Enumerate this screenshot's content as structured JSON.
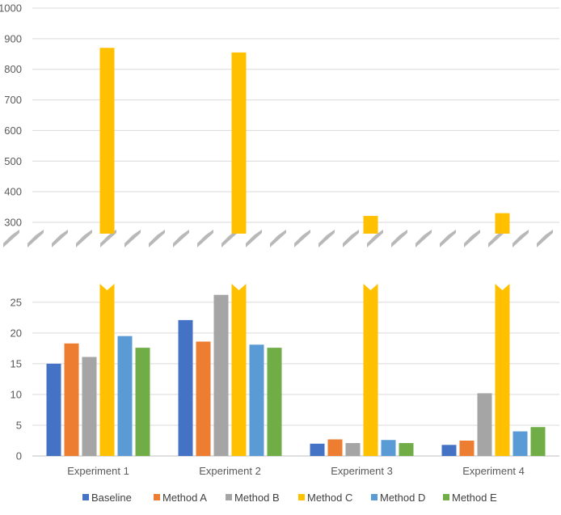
{
  "chart_data": {
    "type": "bar",
    "broken_axis": true,
    "title": "",
    "xlabel": "",
    "ylabel": "",
    "categories": [
      "Experiment 1",
      "Experiment 2",
      "Experiment 3",
      "Experiment 4"
    ],
    "series": [
      {
        "name": "Baseline",
        "color": "#4472C4",
        "values": [
          15.0,
          22.1,
          2.0,
          1.8
        ]
      },
      {
        "name": "Method A",
        "color": "#ED7D31",
        "values": [
          18.3,
          18.6,
          2.7,
          2.5
        ]
      },
      {
        "name": "Method B",
        "color": "#A5A5A5",
        "values": [
          16.1,
          26.2,
          2.1,
          10.2
        ]
      },
      {
        "name": "Method C",
        "color": "#FFC000",
        "values": [
          870,
          855,
          321,
          330
        ]
      },
      {
        "name": "Method D",
        "color": "#5B9BD5",
        "values": [
          19.5,
          18.1,
          2.6,
          4.0
        ]
      },
      {
        "name": "Method  E",
        "color": "#70AD47",
        "values": [
          17.6,
          17.6,
          2.1,
          4.7
        ]
      }
    ],
    "upper_axis": {
      "ylim": [
        300,
        1000
      ],
      "ticks": [
        "300",
        "400",
        "500",
        "600",
        "700",
        "800",
        "900",
        "1000"
      ]
    },
    "lower_axis": {
      "ylim": [
        0,
        28
      ],
      "ticks": [
        "0",
        "5",
        "10",
        "15",
        "20",
        "25"
      ]
    },
    "grid": true,
    "legend": "bottom"
  }
}
